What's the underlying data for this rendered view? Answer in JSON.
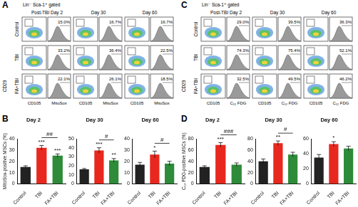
{
  "flow_panels": [
    {
      "label": "A",
      "gate": "Lin⁻ Sca-1⁺ gated",
      "columns": [
        "Post-TBI Day 2",
        "Day 30",
        "Day 60"
      ],
      "rows": [
        "Control",
        "TBI",
        "FA+TBI"
      ],
      "ylabel": "CD29",
      "xlabels": [
        "CD105",
        "MitoSox"
      ],
      "percent_labels": [
        [
          "15.0%",
          "16.7%",
          "16.7%"
        ],
        [
          "33.2%",
          "36.4%",
          "22.5%"
        ],
        [
          "22.1%",
          "26.1%",
          "18.5%"
        ]
      ]
    },
    {
      "label": "C",
      "gate": "Lin⁻ Sca-1⁺ gated",
      "columns": [
        "Post-TBI Day 2",
        "Day 30",
        "Day 60"
      ],
      "rows": [
        "Control",
        "TBI",
        "FA+TBI"
      ],
      "ylabel": "CD29",
      "xlabels": [
        "CD105",
        "C₁₂ FDG"
      ],
      "percent_labels": [
        [
          "29.0%",
          "39.5%",
          "36.3%"
        ],
        [
          "74.3%",
          "75.4%",
          "52.1%"
        ],
        [
          "32.5%",
          "49.5%",
          "46.2%"
        ]
      ]
    }
  ],
  "chart_data": [
    {
      "panel": "B",
      "type": "bar",
      "title": "Day 2",
      "ylabel": "MitoSox-positive MSCs (%)",
      "categories": [
        "Control",
        "TBI",
        "FA+TBI"
      ],
      "values": [
        15,
        32,
        25
      ],
      "errors": [
        1,
        2,
        1.5
      ],
      "colors": [
        "#222222",
        "#e8281e",
        "#2e8b3a"
      ],
      "marks": [
        null,
        "***",
        "***"
      ],
      "bracket": {
        "between": [
          "TBI",
          "FA+TBI"
        ],
        "label": "##"
      },
      "ylim": [
        0,
        40
      ],
      "yticks": [
        0,
        10,
        20,
        30,
        40
      ],
      "grid": false
    },
    {
      "type": "bar",
      "title": "Day 30",
      "categories": [
        "Control",
        "TBI",
        "FA+TBI"
      ],
      "values": [
        16,
        37,
        26
      ],
      "errors": [
        1,
        3,
        2
      ],
      "colors": [
        "#222222",
        "#e8281e",
        "#2e8b3a"
      ],
      "marks": [
        null,
        "***",
        "**"
      ],
      "bracket": {
        "between": [
          "TBI",
          "FA+TBI"
        ],
        "label": "#"
      },
      "ylim": [
        0,
        50
      ],
      "yticks": [
        0,
        10,
        20,
        30,
        40,
        50
      ],
      "grid": false
    },
    {
      "type": "bar",
      "title": "Day 60",
      "categories": [
        "Control",
        "TBI",
        "FA+TBI"
      ],
      "values": [
        17,
        26,
        18
      ],
      "errors": [
        2,
        3,
        2
      ],
      "colors": [
        "#222222",
        "#e8281e",
        "#2e8b3a"
      ],
      "marks": [
        null,
        "*",
        null
      ],
      "bracket": {
        "between": [
          "TBI",
          "FA+TBI"
        ],
        "label": "#"
      },
      "ylim": [
        0,
        40
      ],
      "yticks": [
        0,
        10,
        20,
        30,
        40
      ],
      "grid": false
    },
    {
      "panel": "D",
      "type": "bar",
      "title": "Day 2",
      "ylabel": "C₁₂ FDG-positive MSCs (%)",
      "categories": [
        "Control",
        "TBI",
        "FA+TBI"
      ],
      "values": [
        30,
        69,
        34
      ],
      "errors": [
        2,
        4,
        3
      ],
      "colors": [
        "#222222",
        "#e8281e",
        "#2e8b3a"
      ],
      "marks": [
        null,
        "***",
        null
      ],
      "bracket": {
        "between": [
          "TBI",
          "FA+TBI"
        ],
        "label": "###"
      },
      "ylim": [
        0,
        80
      ],
      "yticks": [
        0,
        20,
        40,
        60,
        80
      ],
      "grid": false
    },
    {
      "type": "bar",
      "title": "Day 30",
      "categories": [
        "Control",
        "TBI",
        "FA+TBI"
      ],
      "values": [
        40,
        72,
        52
      ],
      "errors": [
        4,
        4,
        4
      ],
      "colors": [
        "#222222",
        "#e8281e",
        "#2e8b3a"
      ],
      "marks": [
        null,
        "**",
        null
      ],
      "bracket": {
        "between": [
          "TBI",
          "FA+TBI"
        ],
        "label": "#"
      },
      "ylim": [
        0,
        80
      ],
      "yticks": [
        0,
        20,
        40,
        60,
        80
      ],
      "grid": false
    },
    {
      "type": "bar",
      "title": "Day 60",
      "categories": [
        "Control",
        "TBI",
        "FA+TBI"
      ],
      "values": [
        35,
        53,
        47
      ],
      "errors": [
        4,
        3,
        3
      ],
      "colors": [
        "#222222",
        "#e8281e",
        "#2e8b3a"
      ],
      "marks": [
        null,
        "*",
        null
      ],
      "ylim": [
        0,
        60
      ],
      "yticks": [
        0,
        20,
        40,
        60
      ],
      "grid": false
    }
  ]
}
